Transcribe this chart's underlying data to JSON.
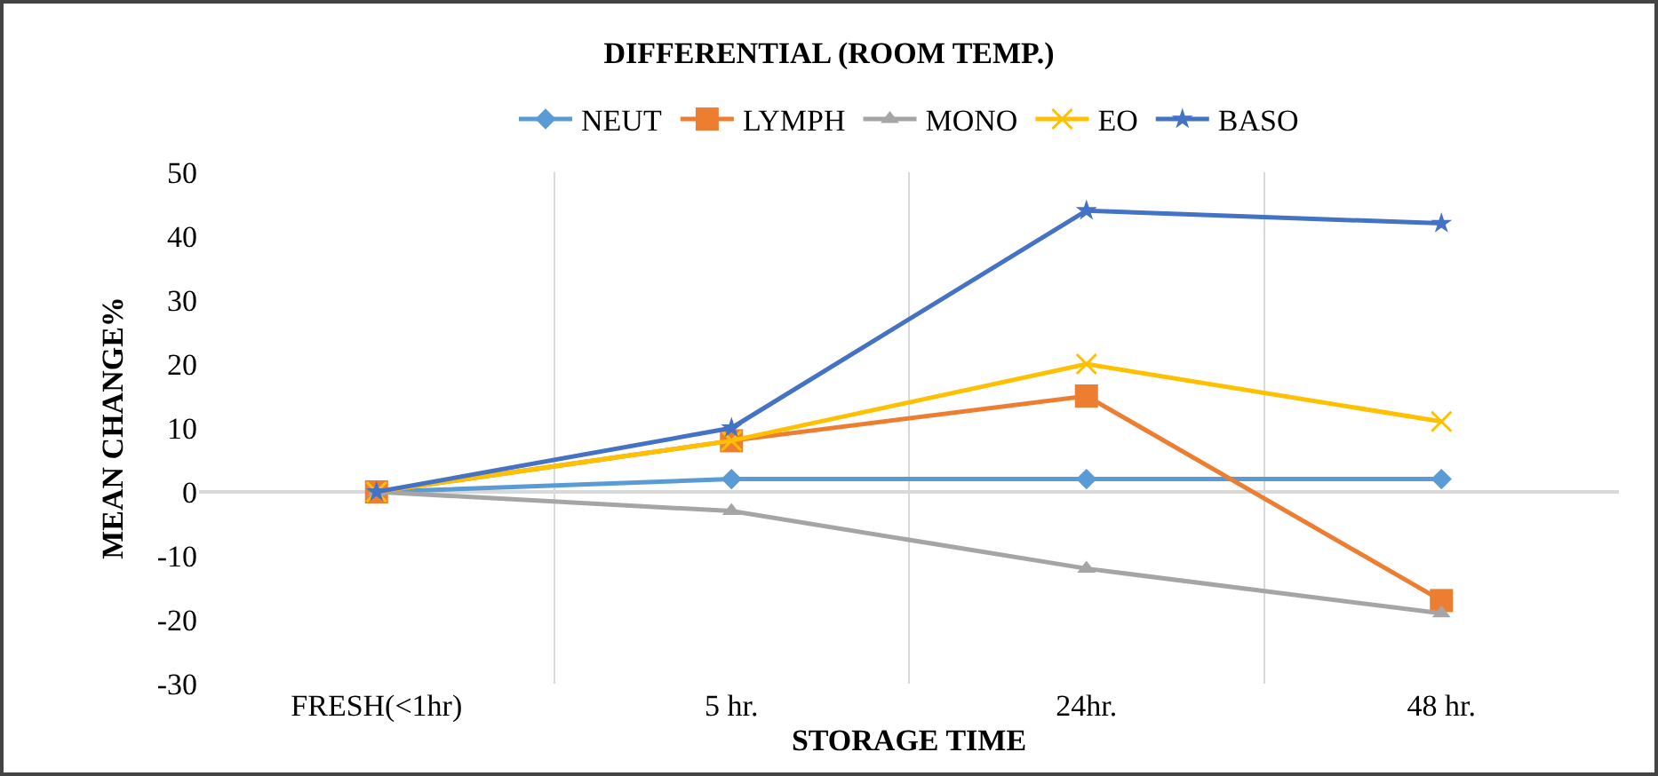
{
  "chart_data": {
    "type": "line",
    "title": "DIFFERENTIAL (ROOM TEMP.)",
    "xlabel": "STORAGE TIME",
    "ylabel": "MEAN CHANGE%",
    "categories": [
      "FRESH(<1hr)",
      "5 hr.",
      "24hr.",
      "48 hr."
    ],
    "series": [
      {
        "name": "NEUT",
        "color": "#5b9bd5",
        "marker": "diamond",
        "values": [
          0,
          2,
          2,
          2
        ]
      },
      {
        "name": "LYMPH",
        "color": "#ed7d31",
        "marker": "square",
        "values": [
          0,
          8,
          15,
          -17
        ]
      },
      {
        "name": "MONO",
        "color": "#a5a5a5",
        "marker": "triangle",
        "values": [
          0,
          -3,
          -12,
          -19
        ]
      },
      {
        "name": "EO",
        "color": "#ffc000",
        "marker": "cross",
        "values": [
          0,
          8,
          20,
          11
        ]
      },
      {
        "name": "BASO",
        "color": "#4472c4",
        "marker": "star",
        "values": [
          0,
          10,
          44,
          42
        ]
      }
    ],
    "ylim": [
      -30,
      50
    ],
    "yticks": [
      -30,
      -20,
      -10,
      0,
      10,
      20,
      30,
      40,
      50
    ],
    "grid": "x",
    "legend": "top",
    "line_style": "solid"
  }
}
